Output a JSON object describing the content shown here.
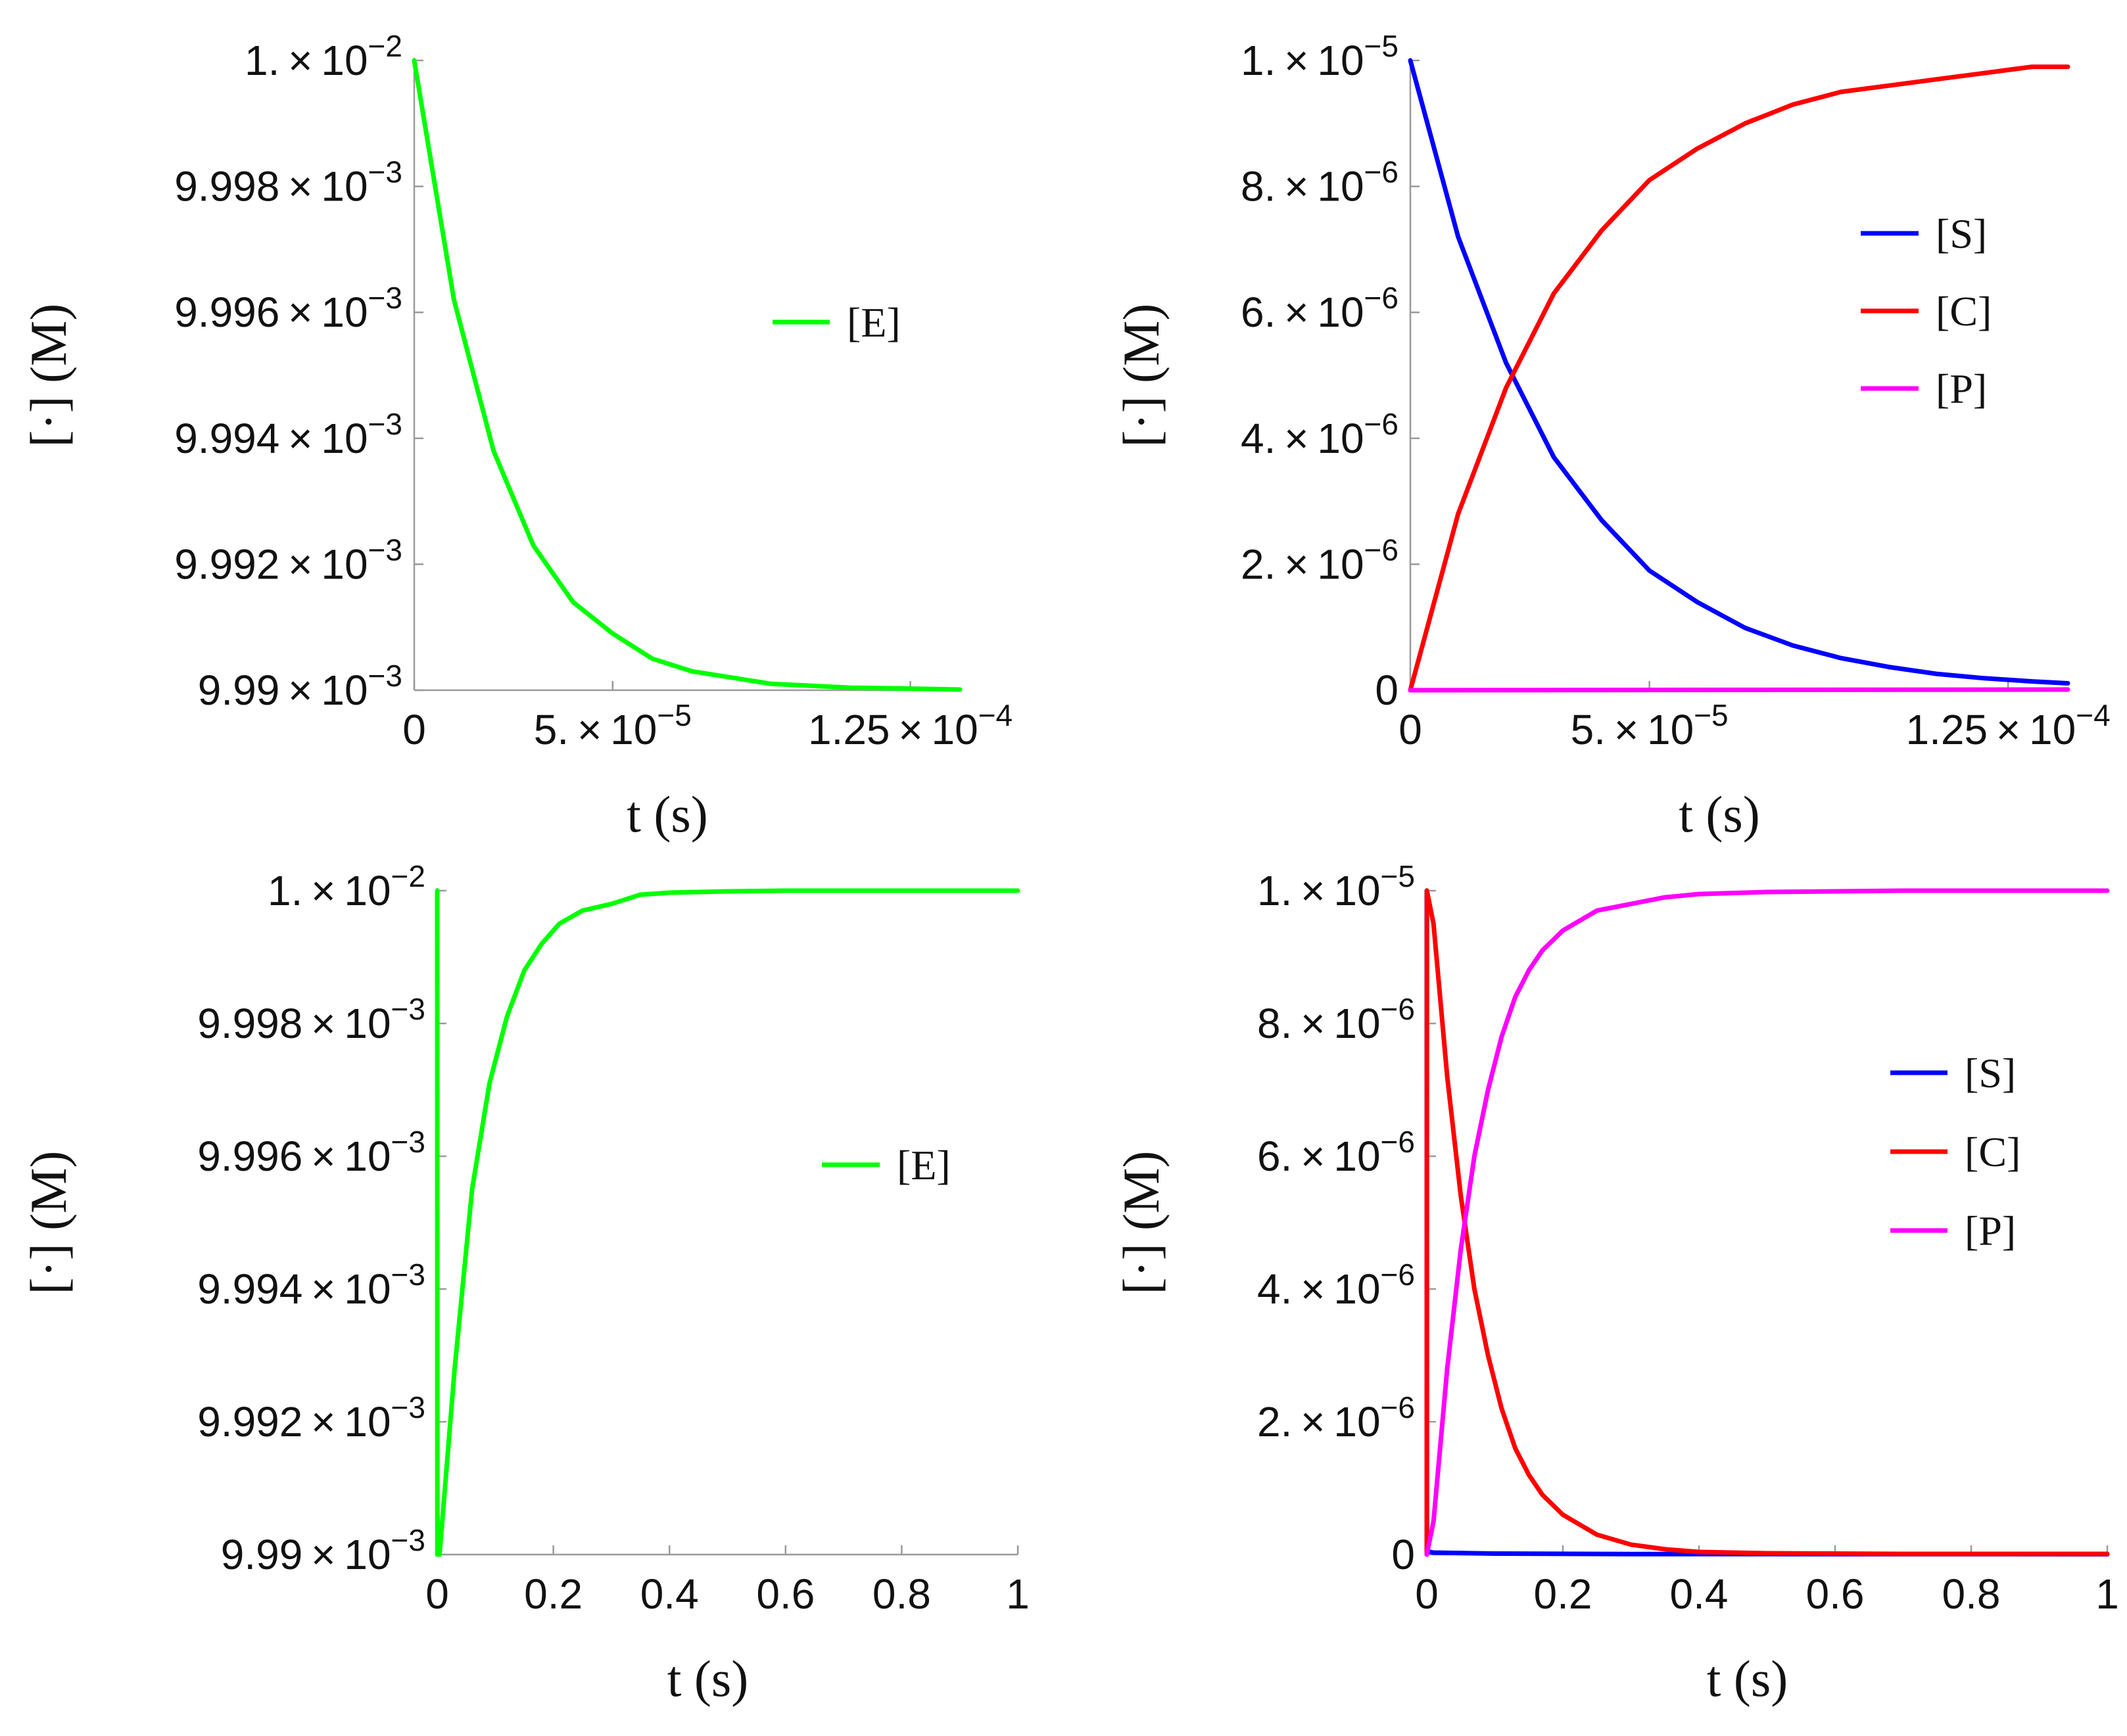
{
  "chart_data": [
    {
      "type": "line",
      "panel": "top-left",
      "xlabel": "t (s)",
      "ylabel": "[·] (M)",
      "xlim": [
        0,
        0.0001375
      ],
      "ylim": [
        0.00999,
        0.01
      ],
      "xticks": [
        0,
        5e-05,
        0.000125
      ],
      "xtick_labels": [
        {
          "mant": "0",
          "exp": ""
        },
        {
          "mant": "5. × 10",
          "exp": "−5"
        },
        {
          "mant": "1.25 × 10",
          "exp": "−4"
        }
      ],
      "yticks": [
        0.00999,
        0.009992,
        0.009994,
        0.009996,
        0.009998,
        0.01
      ],
      "ytick_labels": [
        {
          "mant": "9.99 × 10",
          "exp": "−3"
        },
        {
          "mant": "9.992 × 10",
          "exp": "−3"
        },
        {
          "mant": "9.994 × 10",
          "exp": "−3"
        },
        {
          "mant": "9.996 × 10",
          "exp": "−3"
        },
        {
          "mant": "9.998 × 10",
          "exp": "−3"
        },
        {
          "mant": "1. × 10",
          "exp": "−2"
        }
      ],
      "legend_position": "right-upper",
      "series": [
        {
          "name": "[E]",
          "color": "#00ff00",
          "x": [
            0,
            1e-05,
            2e-05,
            3e-05,
            4e-05,
            5e-05,
            6e-05,
            7e-05,
            8e-05,
            9e-05,
            0.0001,
            0.00011,
            0.00012,
            0.00013,
            0.0001375
          ],
          "y": [
            0.01,
            0.0099962,
            0.0099938,
            0.0099923,
            0.0099914,
            0.0099909,
            0.0099905,
            0.0099903,
            0.0099902,
            0.0099901,
            0.00999007,
            0.00999004,
            0.00999003,
            0.00999002,
            0.00999001
          ]
        }
      ]
    },
    {
      "type": "line",
      "panel": "top-right",
      "xlabel": "t (s)",
      "ylabel": "[·] (M)",
      "xlim": [
        0,
        0.0001375
      ],
      "ylim": [
        0,
        1e-05
      ],
      "xticks": [
        0,
        5e-05,
        0.000125
      ],
      "xtick_labels": [
        {
          "mant": "0",
          "exp": ""
        },
        {
          "mant": "5. × 10",
          "exp": "−5"
        },
        {
          "mant": "1.25 × 10",
          "exp": "−4"
        }
      ],
      "yticks": [
        0,
        2e-06,
        4e-06,
        6e-06,
        8e-06,
        1e-05
      ],
      "ytick_labels": [
        {
          "mant": "0",
          "exp": ""
        },
        {
          "mant": "2. × 10",
          "exp": "−6"
        },
        {
          "mant": "4. × 10",
          "exp": "−6"
        },
        {
          "mant": "6. × 10",
          "exp": "−6"
        },
        {
          "mant": "8. × 10",
          "exp": "−6"
        },
        {
          "mant": "1. × 10",
          "exp": "−5"
        }
      ],
      "legend_position": "right-upper",
      "series": [
        {
          "name": "[S]",
          "color": "#0000ff",
          "x": [
            0,
            1e-05,
            2e-05,
            3e-05,
            4e-05,
            5e-05,
            6e-05,
            7e-05,
            8e-05,
            9e-05,
            0.0001,
            0.00011,
            0.00012,
            0.00013,
            0.0001375
          ],
          "y": [
            1e-05,
            7.2e-06,
            5.2e-06,
            3.7e-06,
            2.7e-06,
            1.9e-06,
            1.4e-06,
            9.9e-07,
            7.1e-07,
            5.1e-07,
            3.7e-07,
            2.6e-07,
            1.9e-07,
            1.4e-07,
            1.1e-07
          ]
        },
        {
          "name": "[C]",
          "color": "#ff0000",
          "x": [
            0,
            1e-05,
            2e-05,
            3e-05,
            4e-05,
            5e-05,
            6e-05,
            7e-05,
            8e-05,
            9e-05,
            0.0001,
            0.00011,
            0.00012,
            0.00013,
            0.0001375
          ],
          "y": [
            0,
            2.8e-06,
            4.8e-06,
            6.3e-06,
            7.3e-06,
            8.1e-06,
            8.6e-06,
            9e-06,
            9.3e-06,
            9.5e-06,
            9.6e-06,
            9.7e-06,
            9.8e-06,
            9.9e-06,
            9.9e-06
          ]
        },
        {
          "name": "[P]",
          "color": "#ff00ff",
          "x": [
            0,
            0.0001375
          ],
          "y": [
            0,
            1e-08
          ]
        }
      ]
    },
    {
      "type": "line",
      "panel": "bottom-left",
      "xlabel": "t (s)",
      "ylabel": "[·] (M)",
      "xlim": [
        0,
        1
      ],
      "ylim": [
        0.00999,
        0.01
      ],
      "xticks": [
        0,
        0.2,
        0.4,
        0.6,
        0.8,
        1
      ],
      "xtick_labels": [
        {
          "mant": "0",
          "exp": ""
        },
        {
          "mant": "0.2",
          "exp": ""
        },
        {
          "mant": "0.4",
          "exp": ""
        },
        {
          "mant": "0.6",
          "exp": ""
        },
        {
          "mant": "0.8",
          "exp": ""
        },
        {
          "mant": "1",
          "exp": ""
        }
      ],
      "yticks": [
        0.00999,
        0.009992,
        0.009994,
        0.009996,
        0.009998,
        0.01
      ],
      "ytick_labels": [
        {
          "mant": "9.99 × 10",
          "exp": "−3"
        },
        {
          "mant": "9.992 × 10",
          "exp": "−3"
        },
        {
          "mant": "9.994 × 10",
          "exp": "−3"
        },
        {
          "mant": "9.996 × 10",
          "exp": "−3"
        },
        {
          "mant": "9.998 × 10",
          "exp": "−3"
        },
        {
          "mant": "1. × 10",
          "exp": "−2"
        }
      ],
      "legend_position": "right-middle",
      "series": [
        {
          "name": "[E]",
          "color": "#00ff00",
          "x": [
            0,
            0.0002,
            0.004,
            0.03,
            0.06,
            0.09,
            0.12,
            0.15,
            0.18,
            0.21,
            0.25,
            0.3,
            0.35,
            0.4,
            0.5,
            0.6,
            0.8,
            1
          ],
          "y": [
            0.01,
            0.00999,
            0.00999,
            0.0099928,
            0.0099955,
            0.0099971,
            0.0099981,
            0.0099988,
            0.0099992,
            0.0099995,
            0.0099997,
            0.0099998,
            0.00999994,
            0.00999997,
            0.00999999,
            0.01,
            0.01,
            0.01
          ]
        }
      ]
    },
    {
      "type": "line",
      "panel": "bottom-right",
      "xlabel": "t (s)",
      "ylabel": "[·] (M)",
      "xlim": [
        0,
        1
      ],
      "ylim": [
        0,
        1e-05
      ],
      "xticks": [
        0,
        0.2,
        0.4,
        0.6,
        0.8,
        1
      ],
      "xtick_labels": [
        {
          "mant": "0",
          "exp": ""
        },
        {
          "mant": "0.2",
          "exp": ""
        },
        {
          "mant": "0.4",
          "exp": ""
        },
        {
          "mant": "0.6",
          "exp": ""
        },
        {
          "mant": "0.8",
          "exp": ""
        },
        {
          "mant": "1",
          "exp": ""
        }
      ],
      "yticks": [
        0,
        2e-06,
        4e-06,
        6e-06,
        8e-06,
        1e-05
      ],
      "ytick_labels": [
        {
          "mant": "0",
          "exp": ""
        },
        {
          "mant": "2. × 10",
          "exp": "−6"
        },
        {
          "mant": "4. × 10",
          "exp": "−6"
        },
        {
          "mant": "6. × 10",
          "exp": "−6"
        },
        {
          "mant": "8. × 10",
          "exp": "−6"
        },
        {
          "mant": "1. × 10",
          "exp": "−5"
        }
      ],
      "legend_position": "right-middle",
      "series": [
        {
          "name": "[S]",
          "color": "#0000ff",
          "x": [
            0,
            0.0002,
            0.01,
            0.1,
            0.3,
            1
          ],
          "y": [
            1e-05,
            5e-08,
            3e-08,
            1.5e-08,
            8e-09,
            5e-09
          ]
        },
        {
          "name": "[C]",
          "color": "#ff0000",
          "x": [
            0,
            0.0002,
            0.01,
            0.03,
            0.05,
            0.07,
            0.09,
            0.11,
            0.13,
            0.15,
            0.17,
            0.2,
            0.25,
            0.3,
            0.35,
            0.4,
            0.5,
            0.7,
            1
          ],
          "y": [
            0,
            1e-05,
            9.5e-06,
            7.2e-06,
            5.4e-06,
            4e-06,
            3e-06,
            2.2e-06,
            1.6e-06,
            1.2e-06,
            9e-07,
            6e-07,
            3e-07,
            1.5e-07,
            8e-08,
            4e-08,
            2e-08,
            1e-08,
            1e-08
          ]
        },
        {
          "name": "[P]",
          "color": "#ff00ff",
          "x": [
            0,
            0.01,
            0.03,
            0.05,
            0.07,
            0.09,
            0.11,
            0.13,
            0.15,
            0.17,
            0.2,
            0.25,
            0.3,
            0.35,
            0.4,
            0.5,
            0.7,
            1
          ],
          "y": [
            0,
            5e-07,
            2.8e-06,
            4.6e-06,
            6e-06,
            7e-06,
            7.8e-06,
            8.4e-06,
            8.8e-06,
            9.1e-06,
            9.4e-06,
            9.7e-06,
            9.8e-06,
            9.9e-06,
            9.95e-06,
            9.98e-06,
            1e-05,
            1e-05
          ]
        }
      ]
    }
  ]
}
